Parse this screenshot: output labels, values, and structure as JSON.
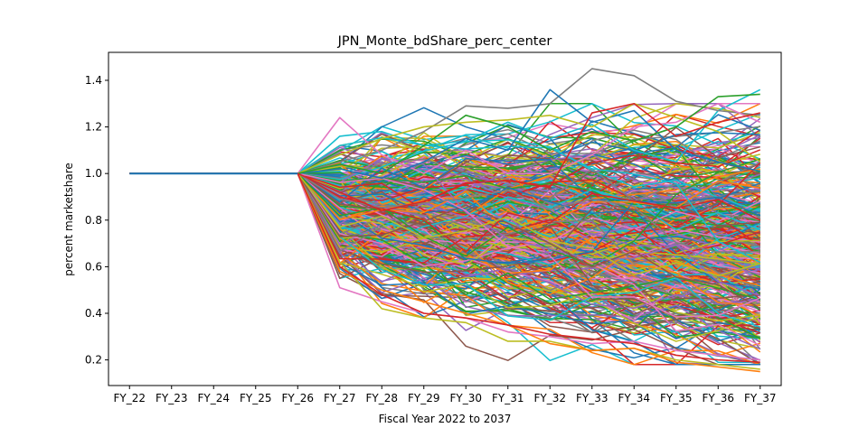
{
  "chart_data": {
    "type": "line",
    "title": "JPN_Monte_bdShare_perc_center",
    "xlabel": "Fiscal Year 2022 to 2037",
    "ylabel": "percent marketshare",
    "categories": [
      "FY_22",
      "FY_23",
      "FY_24",
      "FY_25",
      "FY_26",
      "FY_27",
      "FY_28",
      "FY_29",
      "FY_30",
      "FY_31",
      "FY_32",
      "FY_33",
      "FY_34",
      "FY_35",
      "FY_36",
      "FY_37"
    ],
    "ylim": [
      0.09,
      1.52
    ],
    "yticks": [
      0.2,
      0.4,
      0.6,
      0.8,
      1.0,
      1.2,
      1.4
    ],
    "ytick_labels": [
      "0.2",
      "0.4",
      "0.6",
      "0.8",
      "1.0",
      "1.2",
      "1.4"
    ],
    "grid": false,
    "legend": "none",
    "color_cycle": [
      "#1f77b4",
      "#ff7f0e",
      "#2ca02c",
      "#d62728",
      "#9467bd",
      "#8c564b",
      "#e377c2",
      "#7f7f7f",
      "#bcbd22",
      "#17becf"
    ],
    "simulation_count": 500,
    "random_seed": 7,
    "highlighted_series": [
      {
        "values": [
          1,
          1,
          1,
          1,
          1,
          1.16,
          1.18,
          1.12,
          1.14,
          1.22,
          1.15,
          1.21,
          1.1,
          1.05,
          1.27,
          1.36
        ],
        "color": "#17becf"
      },
      {
        "values": [
          1,
          1,
          1,
          1,
          1,
          1.05,
          1.1,
          1.18,
          1.29,
          1.28,
          1.3,
          1.45,
          1.42,
          1.31,
          1.27,
          1.25
        ],
        "color": "#7f7f7f"
      },
      {
        "values": [
          1,
          1,
          1,
          1,
          1,
          1.24,
          1.08,
          1.0,
          1.1,
          1.0,
          1.0,
          1.08,
          1.2,
          1.22,
          1.3,
          1.22
        ],
        "color": "#e377c2"
      },
      {
        "values": [
          1,
          1,
          1,
          1,
          1,
          1.02,
          0.98,
          1.05,
          1.15,
          1.1,
          1.36,
          1.22,
          1.27,
          1.1,
          1.05,
          1.01
        ],
        "color": "#1f77b4"
      },
      {
        "values": [
          1,
          1,
          1,
          1,
          1,
          1.08,
          1.15,
          1.2,
          1.22,
          1.23,
          1.25,
          1.2,
          1.3,
          1.24,
          1.18,
          1.05
        ],
        "color": "#bcbd22"
      },
      {
        "values": [
          1,
          1,
          1,
          1,
          1,
          1.04,
          1.0,
          1.12,
          1.25,
          1.2,
          1.1,
          1.18,
          1.14,
          1.2,
          1.33,
          1.34
        ],
        "color": "#2ca02c"
      },
      {
        "values": [
          1,
          1,
          1,
          1,
          1,
          0.51,
          0.45,
          0.4,
          0.38,
          0.32,
          0.3,
          0.27,
          0.28,
          0.24,
          0.22,
          0.2
        ],
        "color": "#e377c2"
      },
      {
        "values": [
          1,
          1,
          1,
          1,
          1,
          0.62,
          0.42,
          0.38,
          0.36,
          0.28,
          0.28,
          0.24,
          0.25,
          0.2,
          0.18,
          0.16
        ],
        "color": "#bcbd22"
      },
      {
        "values": [
          1,
          1,
          1,
          1,
          1,
          0.58,
          0.5,
          0.45,
          0.4,
          0.35,
          0.27,
          0.24,
          0.25,
          0.19,
          0.17,
          0.15
        ],
        "color": "#ff7f0e"
      },
      {
        "values": [
          1,
          1,
          1,
          1,
          1,
          0.6,
          0.48,
          0.4,
          0.38,
          0.35,
          0.31,
          0.29,
          0.27,
          0.22,
          0.2,
          0.19
        ],
        "color": "#d62728"
      },
      {
        "values": [
          1,
          1,
          1,
          1,
          1,
          0.92,
          0.84,
          0.88,
          0.96,
          0.97,
          0.94,
          1.26,
          1.3,
          1.16,
          1.22,
          1.26
        ],
        "color": "#d62728"
      }
    ]
  }
}
